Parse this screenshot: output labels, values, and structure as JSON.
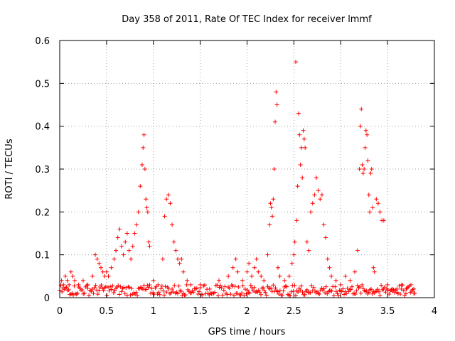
{
  "chart_data": {
    "type": "scatter",
    "title": "Day 358 of 2011, Rate Of TEC Index for receiver lmmf",
    "xlabel": "GPS time / hours",
    "ylabel": "ROTI / TECUs",
    "xlim": [
      0,
      4
    ],
    "ylim": [
      0,
      0.6
    ],
    "xticks": [
      0,
      0.5,
      1,
      1.5,
      2,
      2.5,
      3,
      3.5,
      4
    ],
    "xtick_labels": [
      "0",
      "0.5",
      "1",
      "1.5",
      "2",
      "2.5",
      "3",
      "3.5",
      "4"
    ],
    "yticks": [
      0,
      0.1,
      0.2,
      0.3,
      0.4,
      0.5,
      0.6
    ],
    "ytick_labels": [
      "0",
      "0.1",
      "0.2",
      "0.3",
      "0.4",
      "0.5",
      "0.6"
    ],
    "grid": true,
    "marker": "+",
    "color": "#ff0000",
    "series": [
      {
        "name": "ROTI",
        "points": [
          [
            0.02,
            0.04
          ],
          [
            0.04,
            0.03
          ],
          [
            0.06,
            0.05
          ],
          [
            0.08,
            0.04
          ],
          [
            0.1,
            0.03
          ],
          [
            0.12,
            0.06
          ],
          [
            0.14,
            0.05
          ],
          [
            0.16,
            0.04
          ],
          [
            0.2,
            0.03
          ],
          [
            0.25,
            0.04
          ],
          [
            0.3,
            0.03
          ],
          [
            0.35,
            0.05
          ],
          [
            0.38,
            0.1
          ],
          [
            0.4,
            0.09
          ],
          [
            0.42,
            0.08
          ],
          [
            0.44,
            0.07
          ],
          [
            0.46,
            0.06
          ],
          [
            0.48,
            0.05
          ],
          [
            0.5,
            0.06
          ],
          [
            0.52,
            0.05
          ],
          [
            0.55,
            0.07
          ],
          [
            0.58,
            0.09
          ],
          [
            0.6,
            0.11
          ],
          [
            0.62,
            0.14
          ],
          [
            0.64,
            0.16
          ],
          [
            0.66,
            0.12
          ],
          [
            0.68,
            0.1
          ],
          [
            0.7,
            0.13
          ],
          [
            0.72,
            0.15
          ],
          [
            0.74,
            0.11
          ],
          [
            0.76,
            0.09
          ],
          [
            0.78,
            0.12
          ],
          [
            0.8,
            0.15
          ],
          [
            0.82,
            0.17
          ],
          [
            0.84,
            0.2
          ],
          [
            0.86,
            0.26
          ],
          [
            0.88,
            0.31
          ],
          [
            0.89,
            0.35
          ],
          [
            0.9,
            0.38
          ],
          [
            0.91,
            0.3
          ],
          [
            0.92,
            0.23
          ],
          [
            0.93,
            0.21
          ],
          [
            0.94,
            0.2
          ],
          [
            0.95,
            0.13
          ],
          [
            0.96,
            0.12
          ],
          [
            1.0,
            0.04
          ],
          [
            1.05,
            0.03
          ],
          [
            1.1,
            0.09
          ],
          [
            1.12,
            0.19
          ],
          [
            1.14,
            0.23
          ],
          [
            1.16,
            0.24
          ],
          [
            1.18,
            0.22
          ],
          [
            1.2,
            0.17
          ],
          [
            1.22,
            0.13
          ],
          [
            1.24,
            0.11
          ],
          [
            1.26,
            0.09
          ],
          [
            1.28,
            0.08
          ],
          [
            1.3,
            0.09
          ],
          [
            1.32,
            0.06
          ],
          [
            1.36,
            0.04
          ],
          [
            1.4,
            0.03
          ],
          [
            1.5,
            0.03
          ],
          [
            1.6,
            0.02
          ],
          [
            1.7,
            0.04
          ],
          [
            1.8,
            0.05
          ],
          [
            1.85,
            0.07
          ],
          [
            1.88,
            0.09
          ],
          [
            1.9,
            0.06
          ],
          [
            1.95,
            0.04
          ],
          [
            2.0,
            0.06
          ],
          [
            2.02,
            0.08
          ],
          [
            2.05,
            0.05
          ],
          [
            2.08,
            0.07
          ],
          [
            2.1,
            0.09
          ],
          [
            2.12,
            0.06
          ],
          [
            2.15,
            0.05
          ],
          [
            2.18,
            0.04
          ],
          [
            2.22,
            0.1
          ],
          [
            2.24,
            0.17
          ],
          [
            2.25,
            0.22
          ],
          [
            2.26,
            0.21
          ],
          [
            2.27,
            0.19
          ],
          [
            2.28,
            0.23
          ],
          [
            2.29,
            0.3
          ],
          [
            2.3,
            0.41
          ],
          [
            2.31,
            0.48
          ],
          [
            2.32,
            0.45
          ],
          [
            2.33,
            0.07
          ],
          [
            2.35,
            0.05
          ],
          [
            2.4,
            0.04
          ],
          [
            2.45,
            0.05
          ],
          [
            2.48,
            0.08
          ],
          [
            2.5,
            0.1
          ],
          [
            2.51,
            0.13
          ],
          [
            2.52,
            0.55
          ],
          [
            2.53,
            0.18
          ],
          [
            2.54,
            0.26
          ],
          [
            2.55,
            0.43
          ],
          [
            2.56,
            0.38
          ],
          [
            2.57,
            0.31
          ],
          [
            2.58,
            0.35
          ],
          [
            2.59,
            0.28
          ],
          [
            2.6,
            0.39
          ],
          [
            2.61,
            0.37
          ],
          [
            2.62,
            0.35
          ],
          [
            2.64,
            0.13
          ],
          [
            2.66,
            0.11
          ],
          [
            2.68,
            0.2
          ],
          [
            2.7,
            0.22
          ],
          [
            2.72,
            0.24
          ],
          [
            2.74,
            0.28
          ],
          [
            2.76,
            0.25
          ],
          [
            2.78,
            0.23
          ],
          [
            2.8,
            0.24
          ],
          [
            2.82,
            0.17
          ],
          [
            2.84,
            0.14
          ],
          [
            2.86,
            0.09
          ],
          [
            2.88,
            0.07
          ],
          [
            2.9,
            0.05
          ],
          [
            2.95,
            0.04
          ],
          [
            3.0,
            0.03
          ],
          [
            3.05,
            0.05
          ],
          [
            3.1,
            0.04
          ],
          [
            3.15,
            0.06
          ],
          [
            3.18,
            0.11
          ],
          [
            3.2,
            0.3
          ],
          [
            3.21,
            0.4
          ],
          [
            3.22,
            0.44
          ],
          [
            3.23,
            0.31
          ],
          [
            3.24,
            0.29
          ],
          [
            3.25,
            0.3
          ],
          [
            3.26,
            0.35
          ],
          [
            3.27,
            0.39
          ],
          [
            3.28,
            0.38
          ],
          [
            3.29,
            0.32
          ],
          [
            3.3,
            0.24
          ],
          [
            3.31,
            0.2
          ],
          [
            3.32,
            0.29
          ],
          [
            3.33,
            0.3
          ],
          [
            3.34,
            0.21
          ],
          [
            3.35,
            0.07
          ],
          [
            3.36,
            0.06
          ],
          [
            3.38,
            0.23
          ],
          [
            3.4,
            0.22
          ],
          [
            3.42,
            0.2
          ],
          [
            3.44,
            0.18
          ],
          [
            3.46,
            0.18
          ],
          [
            3.5,
            0.03
          ],
          [
            3.55,
            0.02
          ],
          [
            3.6,
            0.02
          ],
          [
            3.65,
            0.03
          ],
          [
            3.7,
            0.02
          ],
          [
            3.75,
            0.03
          ],
          [
            3.78,
            0.01
          ]
        ]
      }
    ],
    "baseline_band": {
      "x_start": 0,
      "x_end": 3.8,
      "y_min": 0.005,
      "y_max": 0.03
    }
  }
}
